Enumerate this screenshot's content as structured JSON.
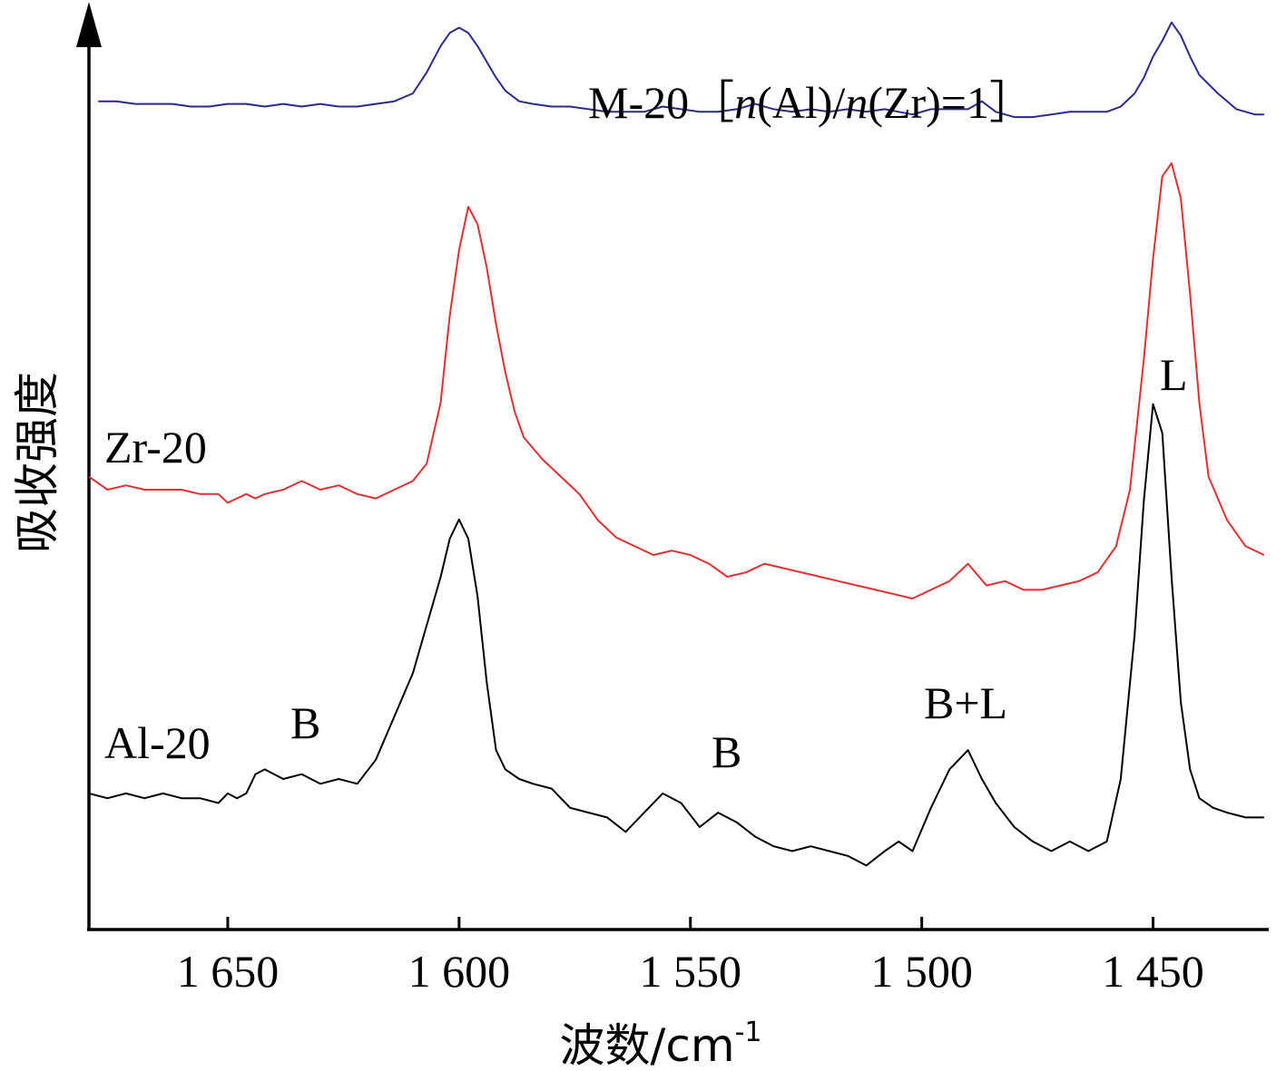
{
  "chart_data": {
    "type": "line",
    "xlabel": "波数/cm",
    "xlabel_sup": "-1",
    "ylabel": "吸收强度",
    "xlim": [
      1680,
      1425
    ],
    "x_reversed": true,
    "x_ticks": [
      {
        "value": 1650,
        "label": "1 650"
      },
      {
        "value": 1600,
        "label": "1 600"
      },
      {
        "value": 1550,
        "label": "1 550"
      },
      {
        "value": 1500,
        "label": "1 500"
      },
      {
        "value": 1450,
        "label": "1 450"
      }
    ],
    "y_ticks_shown": false,
    "grid": false,
    "series": [
      {
        "name": "M-20［n(Al)/n(Zr)=1］",
        "color": "#2a2a8c",
        "x": [
          1678,
          1674,
          1670,
          1666,
          1662,
          1658,
          1654,
          1650,
          1646,
          1642,
          1638,
          1634,
          1630,
          1626,
          1622,
          1618,
          1614,
          1610,
          1607,
          1604,
          1602,
          1600,
          1598,
          1596,
          1594,
          1592,
          1590,
          1587,
          1584,
          1580,
          1576,
          1572,
          1568,
          1564,
          1560,
          1556,
          1552,
          1548,
          1544,
          1540,
          1536,
          1532,
          1528,
          1524,
          1520,
          1516,
          1512,
          1508,
          1505,
          1502,
          1498,
          1494,
          1490,
          1487,
          1484,
          1480,
          1476,
          1472,
          1468,
          1464,
          1460,
          1457,
          1454,
          1452,
          1450,
          1448,
          1446,
          1444,
          1442,
          1440,
          1436,
          1432,
          1428,
          1426
        ],
        "y": [
          0.27,
          0.27,
          0.26,
          0.26,
          0.26,
          0.25,
          0.25,
          0.26,
          0.26,
          0.25,
          0.26,
          0.25,
          0.26,
          0.25,
          0.25,
          0.26,
          0.27,
          0.3,
          0.38,
          0.48,
          0.53,
          0.55,
          0.53,
          0.48,
          0.42,
          0.36,
          0.31,
          0.27,
          0.26,
          0.25,
          0.25,
          0.24,
          0.23,
          0.23,
          0.23,
          0.25,
          0.24,
          0.23,
          0.23,
          0.24,
          0.26,
          0.24,
          0.23,
          0.24,
          0.23,
          0.24,
          0.23,
          0.24,
          0.23,
          0.22,
          0.24,
          0.24,
          0.24,
          0.27,
          0.23,
          0.21,
          0.21,
          0.22,
          0.23,
          0.23,
          0.23,
          0.25,
          0.3,
          0.36,
          0.44,
          0.5,
          0.57,
          0.52,
          0.44,
          0.37,
          0.3,
          0.24,
          0.22,
          0.22
        ]
      },
      {
        "name": "Zr-20",
        "color": "#e03030",
        "x": [
          1680,
          1676,
          1672,
          1668,
          1664,
          1660,
          1656,
          1652,
          1650,
          1648,
          1646,
          1644,
          1642,
          1638,
          1634,
          1630,
          1626,
          1622,
          1618,
          1614,
          1610,
          1607,
          1604,
          1602,
          1600,
          1598,
          1596,
          1594,
          1592,
          1590,
          1588,
          1586,
          1582,
          1578,
          1574,
          1570,
          1566,
          1562,
          1558,
          1554,
          1550,
          1546,
          1542,
          1538,
          1534,
          1530,
          1526,
          1522,
          1518,
          1514,
          1510,
          1506,
          1502,
          1498,
          1494,
          1490,
          1486,
          1482,
          1478,
          1474,
          1470,
          1466,
          1462,
          1458,
          1455,
          1452,
          1450,
          1448,
          1446,
          1444,
          1442,
          1440,
          1438,
          1434,
          1430,
          1426
        ],
        "y": [
          0.28,
          0.25,
          0.26,
          0.25,
          0.25,
          0.25,
          0.24,
          0.24,
          0.22,
          0.23,
          0.24,
          0.23,
          0.24,
          0.25,
          0.27,
          0.25,
          0.26,
          0.24,
          0.23,
          0.25,
          0.27,
          0.31,
          0.45,
          0.65,
          0.8,
          0.9,
          0.86,
          0.76,
          0.63,
          0.52,
          0.43,
          0.37,
          0.32,
          0.28,
          0.24,
          0.18,
          0.14,
          0.12,
          0.1,
          0.11,
          0.1,
          0.08,
          0.05,
          0.06,
          0.08,
          0.07,
          0.06,
          0.05,
          0.04,
          0.03,
          0.02,
          0.01,
          0.0,
          0.02,
          0.04,
          0.08,
          0.03,
          0.04,
          0.02,
          0.02,
          0.03,
          0.04,
          0.06,
          0.12,
          0.25,
          0.55,
          0.78,
          0.97,
          1.0,
          0.92,
          0.7,
          0.45,
          0.28,
          0.18,
          0.12,
          0.1
        ]
      },
      {
        "name": "Al-20",
        "color": "#000000",
        "x": [
          1680,
          1676,
          1672,
          1668,
          1664,
          1660,
          1656,
          1652,
          1650,
          1648,
          1646,
          1644,
          1642,
          1638,
          1634,
          1630,
          1626,
          1622,
          1618,
          1614,
          1610,
          1607,
          1604,
          1602,
          1600,
          1598,
          1596,
          1594,
          1592,
          1590,
          1587,
          1584,
          1580,
          1576,
          1572,
          1568,
          1564,
          1560,
          1556,
          1552,
          1548,
          1544,
          1540,
          1536,
          1532,
          1528,
          1524,
          1520,
          1516,
          1512,
          1508,
          1505,
          1502,
          1498,
          1494,
          1490,
          1487,
          1484,
          1480,
          1476,
          1472,
          1468,
          1464,
          1460,
          1457,
          1454,
          1452,
          1450,
          1448,
          1446,
          1444,
          1442,
          1440,
          1437,
          1434,
          1430,
          1426
        ],
        "y": [
          0.17,
          0.16,
          0.17,
          0.16,
          0.17,
          0.16,
          0.16,
          0.15,
          0.17,
          0.16,
          0.17,
          0.21,
          0.22,
          0.2,
          0.21,
          0.19,
          0.2,
          0.19,
          0.24,
          0.33,
          0.42,
          0.52,
          0.62,
          0.7,
          0.74,
          0.7,
          0.58,
          0.4,
          0.26,
          0.22,
          0.2,
          0.19,
          0.18,
          0.14,
          0.13,
          0.12,
          0.09,
          0.13,
          0.17,
          0.15,
          0.1,
          0.13,
          0.11,
          0.08,
          0.06,
          0.05,
          0.06,
          0.05,
          0.04,
          0.02,
          0.05,
          0.07,
          0.05,
          0.14,
          0.22,
          0.26,
          0.2,
          0.15,
          0.1,
          0.07,
          0.05,
          0.07,
          0.05,
          0.07,
          0.2,
          0.5,
          0.78,
          0.98,
          0.92,
          0.62,
          0.36,
          0.22,
          0.16,
          0.14,
          0.13,
          0.12,
          0.12
        ]
      }
    ],
    "annotations": [
      {
        "text": "B",
        "near_x": 1640
      },
      {
        "text": "B",
        "near_x": 1546
      },
      {
        "text": "B+L",
        "near_x": 1490
      },
      {
        "text": "L",
        "near_x": 1446
      }
    ]
  },
  "series_labels": {
    "m20_prefix": "M-20［",
    "m20_n1": "n",
    "m20_mid": "(Al)/",
    "m20_n2": "n",
    "m20_suffix": "(Zr)=1］",
    "zr20": "Zr-20",
    "al20": "Al-20"
  },
  "peak_labels": {
    "b1": "B",
    "b2": "B",
    "bl": "B+L",
    "l": "L"
  }
}
